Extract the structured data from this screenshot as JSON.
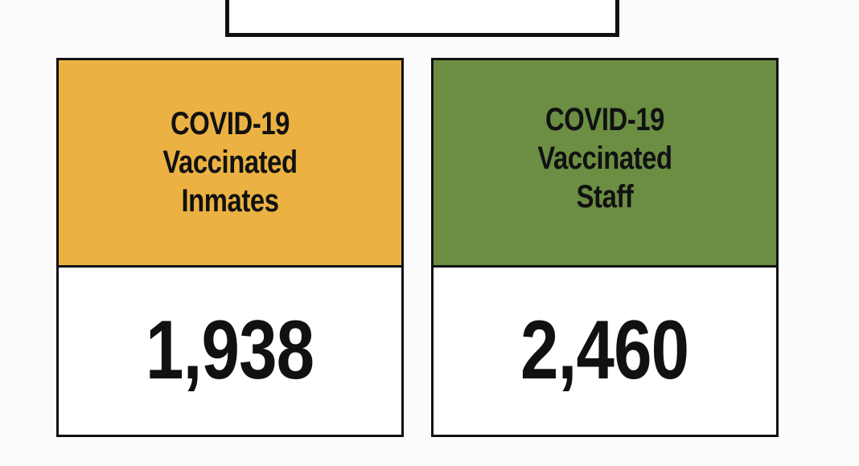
{
  "cards": [
    {
      "title": "COVID-19\nVaccinated\nInmates",
      "value": "1,938",
      "header_color": "#ebb243"
    },
    {
      "title": "COVID-19\nVaccinated\nStaff",
      "value": "2,460",
      "header_color": "#6b8e43"
    }
  ],
  "colors": {
    "background": "#fbfbfb",
    "border": "#111111",
    "value_background": "#ffffff"
  }
}
